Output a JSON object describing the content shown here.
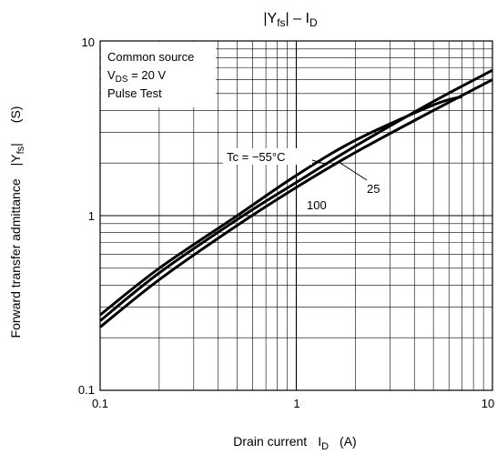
{
  "chart_data": {
    "type": "line",
    "title": "|Y",
    "title_sub": "fs",
    "title_suffix": "| – I",
    "title_sub2": "D",
    "x_scale": "log",
    "y_scale": "log",
    "xlim": [
      0.1,
      10
    ],
    "ylim": [
      0.1,
      10
    ],
    "x_ticks": [
      "0.1",
      "1",
      "10"
    ],
    "y_ticks": [
      "0.1",
      "1",
      "10"
    ],
    "xlabel": {
      "prefix": "Drain current",
      "symbol": "I",
      "sub": "D",
      "unit": "(A)"
    },
    "ylabel": {
      "text": "Forward transfer admittance",
      "symbol": "|Y",
      "sub": "fs",
      "close": "|",
      "unit": "(S)"
    },
    "conditions": {
      "line1": "Common source",
      "line2_symbol": "V",
      "line2_sub": "DS",
      "line2_rest": " = 20 V",
      "line3": "Pulse Test"
    },
    "grid": true,
    "series": [
      {
        "name": "Tc = −55°C",
        "x": [
          0.1,
          0.2,
          0.5,
          1,
          2,
          5,
          7
        ],
        "y": [
          0.27,
          0.5,
          1.0,
          1.7,
          2.7,
          4.3,
          4.8
        ]
      },
      {
        "name": "25",
        "x": [
          0.1,
          0.2,
          0.5,
          1,
          2,
          5,
          10
        ],
        "y": [
          0.25,
          0.47,
          0.95,
          1.55,
          2.5,
          4.5,
          6.8
        ]
      },
      {
        "name": "100",
        "x": [
          0.1,
          0.2,
          0.5,
          1,
          2,
          5,
          10
        ],
        "y": [
          0.23,
          0.43,
          0.88,
          1.45,
          2.3,
          4.0,
          6.0
        ]
      }
    ],
    "annotations": [
      "Tc = −55°C",
      "25",
      "100"
    ]
  }
}
